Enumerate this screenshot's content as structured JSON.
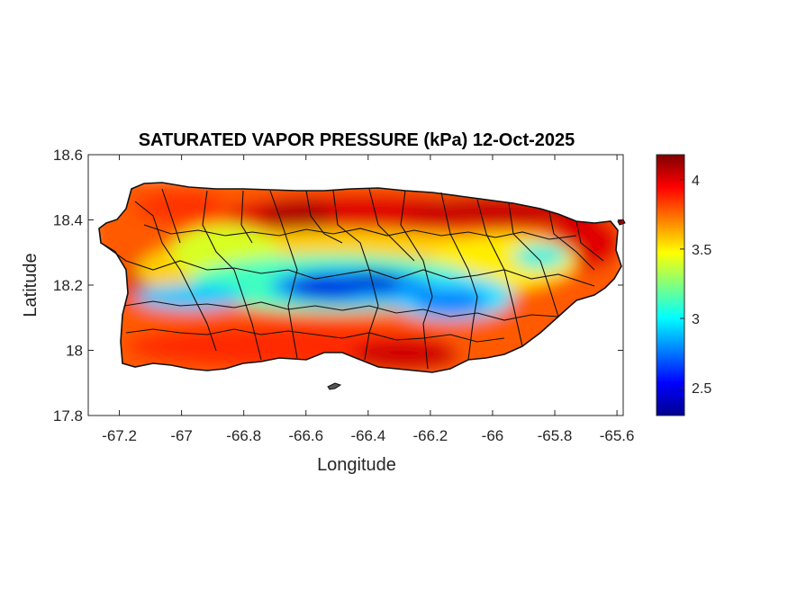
{
  "title": "SATURATED VAPOR PRESSURE (kPa) 12-Oct-2025",
  "xlabel": "Longitude",
  "ylabel": "Latitude",
  "x_ticks": [
    "-67.2",
    "-67",
    "-66.8",
    "-66.6",
    "-66.4",
    "-66.2",
    "-66",
    "-65.8",
    "-65.6"
  ],
  "y_ticks": [
    "18.6",
    "18.4",
    "18.2",
    "18",
    "17.8"
  ],
  "colorbar_ticks": [
    "4",
    "3.5",
    "3",
    "2.5"
  ],
  "chart_data": {
    "type": "heatmap",
    "title": "SATURATED VAPOR PRESSURE (kPa) 12-Oct-2025",
    "xlabel": "Longitude",
    "ylabel": "Latitude",
    "xlim": [
      -67.3,
      -65.58
    ],
    "ylim": [
      17.8,
      18.6
    ],
    "x_ticks": [
      -67.2,
      -67,
      -66.8,
      -66.6,
      -66.4,
      -66.2,
      -66,
      -65.8,
      -65.6
    ],
    "y_ticks": [
      18.6,
      18.4,
      18.2,
      18,
      17.8
    ],
    "colorbar": {
      "range": [
        2.3,
        4.18
      ],
      "ticks": [
        4,
        3.5,
        3,
        2.5
      ],
      "colormap": "jet"
    },
    "field_summary": {
      "central_mountain_minimum_kpa": 2.4,
      "coastal_maximum_kpa": 4.15
    },
    "grid": false
  }
}
